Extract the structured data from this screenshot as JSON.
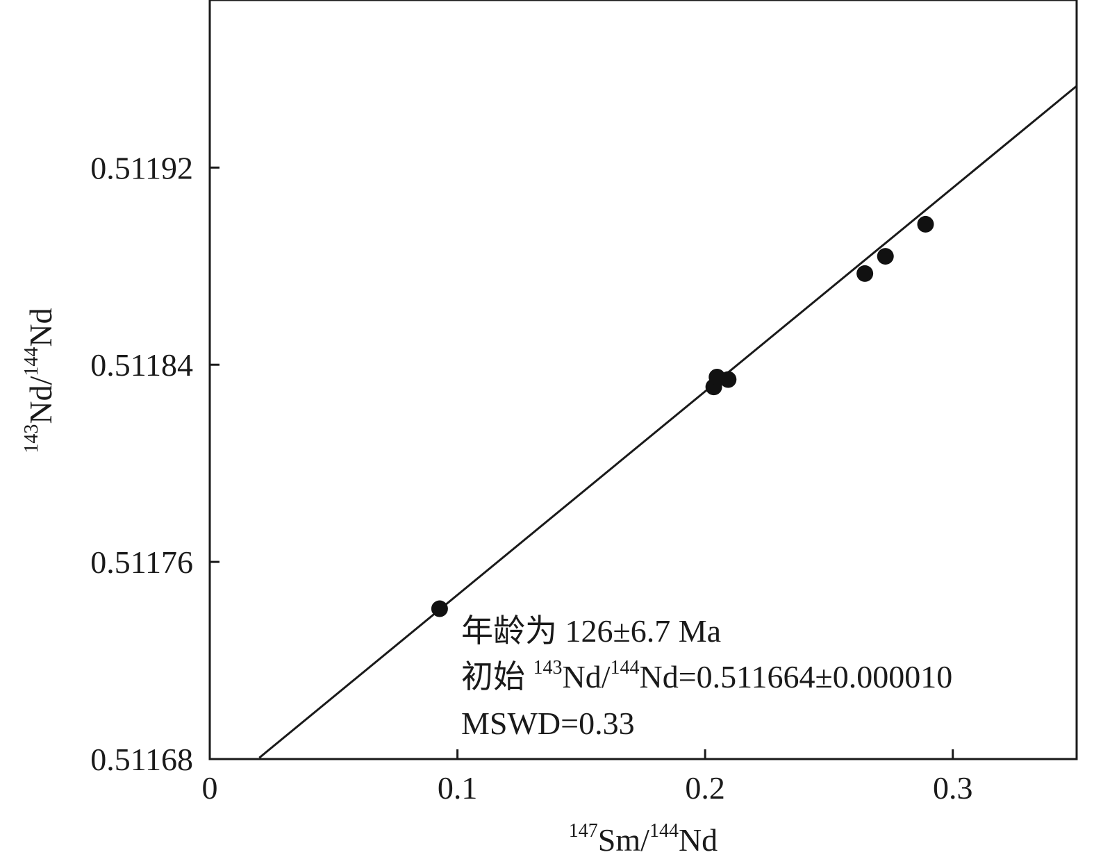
{
  "chart_data": {
    "type": "scatter",
    "title": "",
    "xlabel": {
      "sup1": "147",
      "base1": "Sm/",
      "sup2": "144",
      "base2": "Nd"
    },
    "ylabel": {
      "sup1": "143",
      "base1": "Nd/",
      "sup2": "144",
      "base2": "Nd"
    },
    "xlim": [
      0,
      0.35
    ],
    "ylim": [
      0.51168,
      0.511988
    ],
    "x_ticks": [
      {
        "value": 0,
        "label": "0"
      },
      {
        "value": 0.1,
        "label": "0.1"
      },
      {
        "value": 0.2,
        "label": "0.2"
      },
      {
        "value": 0.3,
        "label": "0.3"
      }
    ],
    "y_ticks": [
      {
        "value": 0.51168,
        "label": "0.51168"
      },
      {
        "value": 0.51176,
        "label": "0.51176"
      },
      {
        "value": 0.51184,
        "label": "0.51184"
      },
      {
        "value": 0.51192,
        "label": "0.51192"
      }
    ],
    "points": [
      {
        "x": 0.0928,
        "y": 0.511741
      },
      {
        "x": 0.2035,
        "y": 0.511831
      },
      {
        "x": 0.2048,
        "y": 0.511835
      },
      {
        "x": 0.2093,
        "y": 0.511834
      },
      {
        "x": 0.2645,
        "y": 0.511877
      },
      {
        "x": 0.2728,
        "y": 0.511884
      },
      {
        "x": 0.289,
        "y": 0.511897
      }
    ],
    "isochron": {
      "slope": 0.000826,
      "intercept": 0.511664,
      "x_start": 0.02,
      "x_end": 0.35
    },
    "grid": false,
    "annotations": {
      "age": "年龄为 126±6.7 Ma",
      "initial_prefix": "初始 ",
      "initial_sup1": "143",
      "initial_mid": "Nd/",
      "initial_sup2": "144",
      "initial_suffix": "Nd=0.511664±0.000010",
      "mswd": "MSWD=0.33"
    }
  },
  "colors": {
    "line": "#1a1a1a",
    "point": "#111111",
    "axis": "#1a1a1a"
  }
}
